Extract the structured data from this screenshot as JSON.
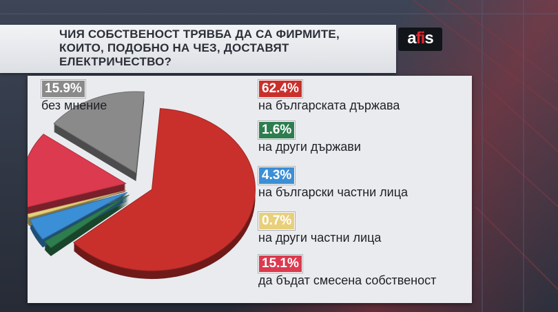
{
  "title": "ЧИЯ СОБСТВЕНОСТ ТРЯВБА ДА СА ФИРМИТЕ,\nКОИТО, ПОДОБНО НА ЧЕЗ, ДОСТАВЯТ\nЕЛЕКТРИЧЕСТВО?",
  "logo": {
    "part1": "a",
    "part2": "fi",
    "part3": "s"
  },
  "chart_data": {
    "type": "pie",
    "series": [
      {
        "label": "на българската държава",
        "value": 62.4,
        "value_label": "62.4%",
        "color": "#c9302c"
      },
      {
        "label": "на други държави",
        "value": 1.6,
        "value_label": "1.6%",
        "color": "#2e7d4f"
      },
      {
        "label": "на български частни лица",
        "value": 4.3,
        "value_label": "4.3%",
        "color": "#3b8fd6"
      },
      {
        "label": "на други частни лица",
        "value": 0.7,
        "value_label": "0.7%",
        "color": "#e8cf7a"
      },
      {
        "label": "да бъдат смесена собственост",
        "value": 15.1,
        "value_label": "15.1%",
        "color": "#dc3a4e"
      },
      {
        "label": "без мнение",
        "value": 15.9,
        "value_label": "15.9%",
        "color": "#8a8a8a"
      }
    ]
  }
}
